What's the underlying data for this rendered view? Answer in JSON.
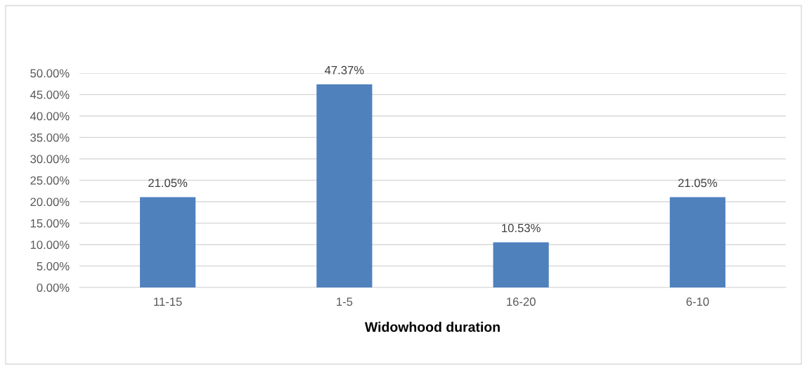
{
  "chart_data": {
    "type": "bar",
    "xlabel": "Widowhood duration",
    "categories": [
      "11-15",
      "1-5",
      "16-20",
      "6-10"
    ],
    "values": [
      21.05,
      47.37,
      10.53,
      21.05
    ],
    "value_labels": [
      "21.05%",
      "47.37%",
      "10.53%",
      "21.05%"
    ],
    "color": "#4f81bd",
    "ylim": [
      0,
      50
    ],
    "yticks": [
      {
        "value": 0,
        "label": "0.00%"
      },
      {
        "value": 5,
        "label": "5.00%"
      },
      {
        "value": 10,
        "label": "10.00%"
      },
      {
        "value": 15,
        "label": "15.00%"
      },
      {
        "value": 20,
        "label": "20.00%"
      },
      {
        "value": 25,
        "label": "25.00%"
      },
      {
        "value": 30,
        "label": "30.00%"
      },
      {
        "value": 35,
        "label": "35.00%"
      },
      {
        "value": 40,
        "label": "40.00%"
      },
      {
        "value": 45,
        "label": "45.00%"
      },
      {
        "value": 50,
        "label": "50.00%"
      }
    ],
    "grid": "y",
    "legend": false
  }
}
